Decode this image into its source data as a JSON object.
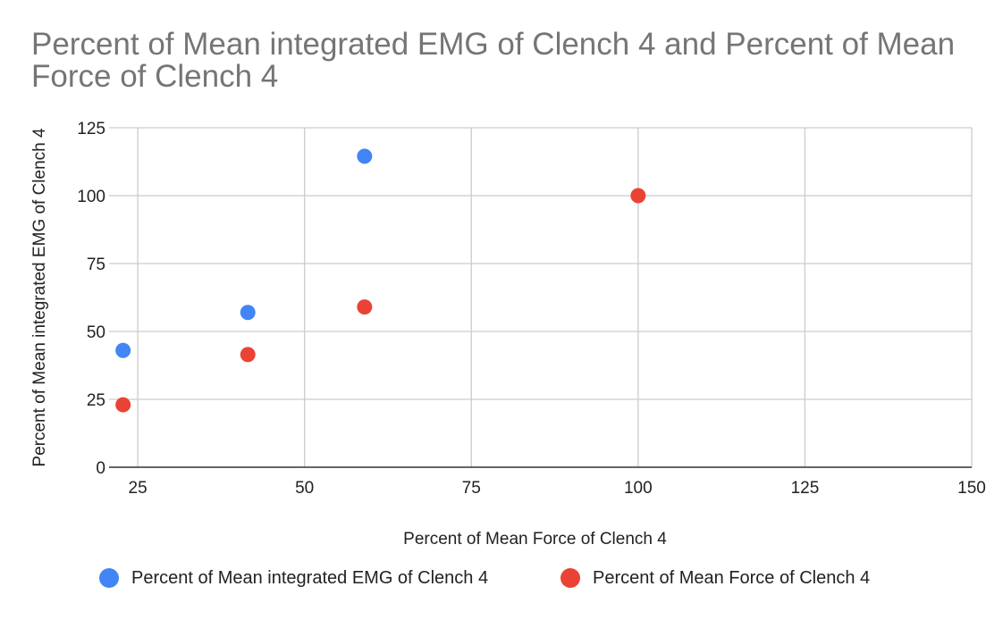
{
  "chart_data": {
    "type": "scatter",
    "title": "Percent of Mean integrated EMG of Clench 4 and Percent of Mean Force of Clench 4",
    "xlabel": "Percent of Mean Force of Clench 4",
    "ylabel": "Percent of Mean integrated EMG of Clench 4",
    "xlim": [
      20.7,
      150
    ],
    "ylim": [
      0,
      125
    ],
    "xticks": [
      25,
      50,
      75,
      100,
      125,
      150
    ],
    "yticks": [
      0,
      25,
      50,
      75,
      100,
      125
    ],
    "grid": true,
    "legend_position": "bottom",
    "series": [
      {
        "name": "Percent of Mean integrated EMG of Clench 4",
        "color": "#4285F4",
        "points": [
          [
            22.8,
            43
          ],
          [
            41.5,
            57
          ],
          [
            59,
            114.5
          ]
        ]
      },
      {
        "name": "Percent of Mean Force of Clench 4",
        "color": "#EA4335",
        "points": [
          [
            22.8,
            23
          ],
          [
            41.5,
            41.5
          ],
          [
            59,
            59
          ],
          [
            100,
            100
          ]
        ]
      }
    ]
  }
}
